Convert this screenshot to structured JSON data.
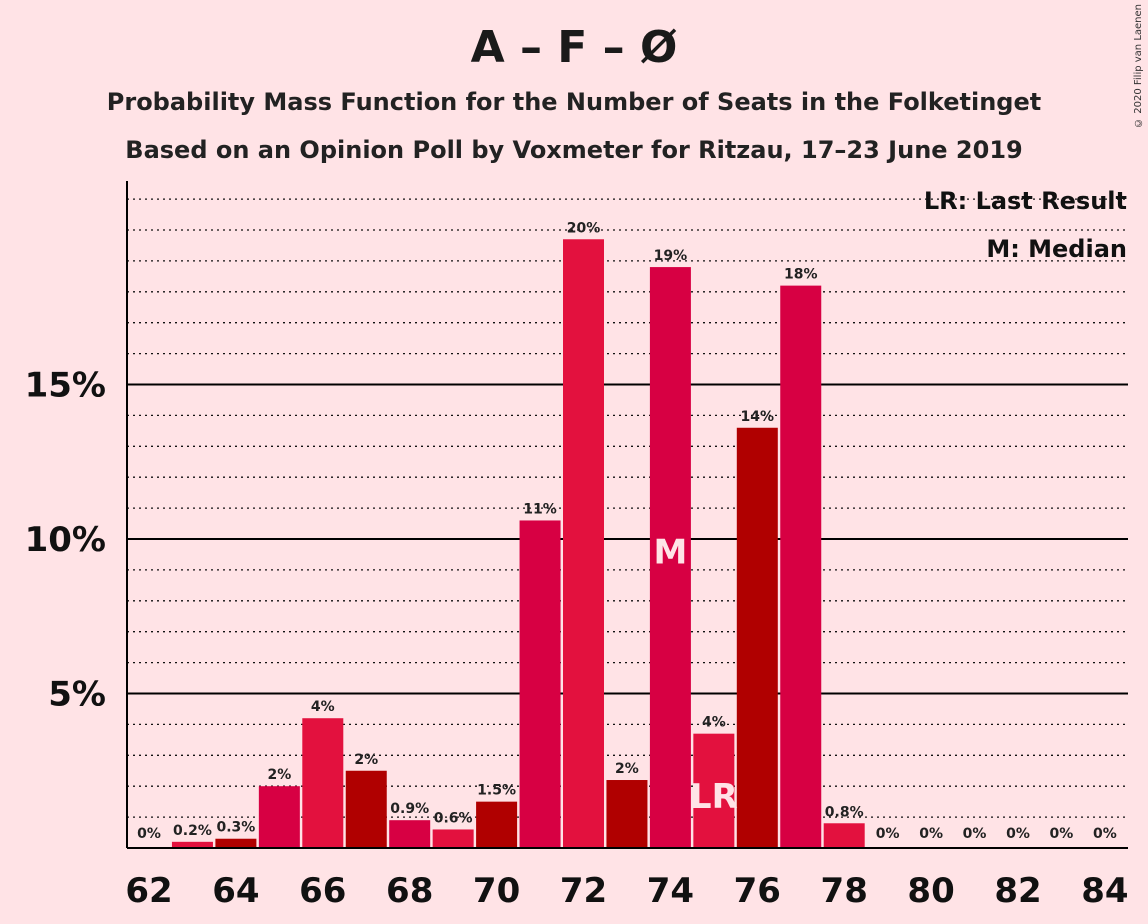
{
  "header": {
    "title": "A – F – Ø",
    "subtitle_1": "Probability Mass Function for the Number of Seats in the Folketinget",
    "subtitle_2": "Based on an Opinion Poll by Voxmeter for Ritzau, 17–23 June 2019",
    "copyright": "© 2020 Filip van Laenen"
  },
  "legend": {
    "last_result": "LR: Last Result",
    "median": "M: Median"
  },
  "colors": {
    "background": "#FFE3E6",
    "bar_palette": [
      "#D70043",
      "#E3113E",
      "#B00000"
    ],
    "label_on_bar": "#FFE3E6"
  },
  "chart_data": {
    "type": "bar",
    "x": [
      62,
      63,
      64,
      65,
      66,
      67,
      68,
      69,
      70,
      71,
      72,
      73,
      74,
      75,
      76,
      77,
      78,
      79,
      80,
      81,
      82,
      83,
      84
    ],
    "values": [
      0,
      0.2,
      0.3,
      2,
      4.2,
      2.5,
      0.9,
      0.6,
      1.5,
      10.6,
      19.7,
      2.2,
      18.8,
      3.7,
      13.6,
      18.2,
      0.8,
      0,
      0,
      0,
      0,
      0,
      0
    ],
    "labels": [
      "0%",
      "0.2%",
      "0.3%",
      "2%",
      "4%",
      "2%",
      "0.9%",
      "0.6%",
      "1.5%",
      "11%",
      "20%",
      "2%",
      "19%",
      "4%",
      "14%",
      "18%",
      "0.8%",
      "0%",
      "0%",
      "0%",
      "0%",
      "0%",
      "0%"
    ],
    "xticks": [
      62,
      64,
      66,
      68,
      70,
      72,
      74,
      76,
      78,
      80,
      82,
      84
    ],
    "yticks": [
      5,
      10,
      15
    ],
    "ytick_labels": [
      "5%",
      "10%",
      "15%"
    ],
    "ylim": [
      0,
      21.5
    ],
    "minor_grid_step": 1,
    "median_seat": 74,
    "median_marker": "M",
    "last_result_seat": 75,
    "last_result_marker": "LR",
    "legend_position": "top-right"
  }
}
